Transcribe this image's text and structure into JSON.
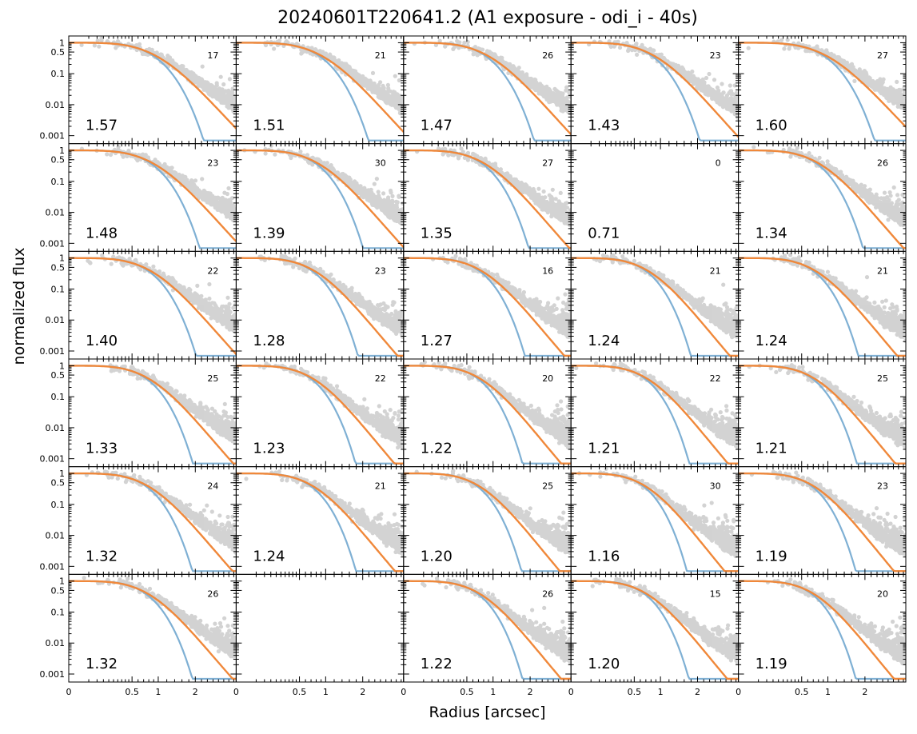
{
  "figure": {
    "title": "20240601T220641.2 (A1 exposure - odi_i - 40s)",
    "xlabel": "Radius [arcsec]",
    "ylabel": "normalized flux"
  },
  "chart_data": {
    "type": "scatter",
    "layout": {
      "rows": 6,
      "cols": 5
    },
    "x_axis": {
      "scale": "sqrt",
      "range": [
        0,
        3.5
      ],
      "ticks": [
        0,
        0.5,
        1,
        2
      ],
      "tick_labels": [
        "0",
        "0.5",
        "1",
        "2"
      ]
    },
    "y_axis": {
      "scale": "log",
      "range": [
        0.0007,
        1.3
      ],
      "ticks": [
        0.001,
        0.01,
        0.1,
        0.5,
        1
      ],
      "tick_labels": [
        "0.001",
        "0.01",
        "0.1",
        "0.5",
        "1"
      ]
    },
    "series_colors": {
      "data_points": "#808080",
      "model_blue": "#7fb0d4",
      "model_orange": "#f0883a"
    },
    "panels": [
      {
        "row": 0,
        "col": 0,
        "fwhm": "1.57",
        "count": "17",
        "has_data": true
      },
      {
        "row": 0,
        "col": 1,
        "fwhm": "1.51",
        "count": "21",
        "has_data": true
      },
      {
        "row": 0,
        "col": 2,
        "fwhm": "1.47",
        "count": "26",
        "has_data": true
      },
      {
        "row": 0,
        "col": 3,
        "fwhm": "1.43",
        "count": "23",
        "has_data": true
      },
      {
        "row": 0,
        "col": 4,
        "fwhm": "1.60",
        "count": "27",
        "has_data": true
      },
      {
        "row": 1,
        "col": 0,
        "fwhm": "1.48",
        "count": "23",
        "has_data": true
      },
      {
        "row": 1,
        "col": 1,
        "fwhm": "1.39",
        "count": "30",
        "has_data": true
      },
      {
        "row": 1,
        "col": 2,
        "fwhm": "1.35",
        "count": "27",
        "has_data": true
      },
      {
        "row": 1,
        "col": 3,
        "fwhm": "0.71",
        "count": "0",
        "has_data": false
      },
      {
        "row": 1,
        "col": 4,
        "fwhm": "1.34",
        "count": "26",
        "has_data": true
      },
      {
        "row": 2,
        "col": 0,
        "fwhm": "1.40",
        "count": "22",
        "has_data": true
      },
      {
        "row": 2,
        "col": 1,
        "fwhm": "1.28",
        "count": "23",
        "has_data": true
      },
      {
        "row": 2,
        "col": 2,
        "fwhm": "1.27",
        "count": "16",
        "has_data": true
      },
      {
        "row": 2,
        "col": 3,
        "fwhm": "1.24",
        "count": "21",
        "has_data": true
      },
      {
        "row": 2,
        "col": 4,
        "fwhm": "1.24",
        "count": "21",
        "has_data": true
      },
      {
        "row": 3,
        "col": 0,
        "fwhm": "1.33",
        "count": "25",
        "has_data": true
      },
      {
        "row": 3,
        "col": 1,
        "fwhm": "1.23",
        "count": "22",
        "has_data": true
      },
      {
        "row": 3,
        "col": 2,
        "fwhm": "1.22",
        "count": "20",
        "has_data": true
      },
      {
        "row": 3,
        "col": 3,
        "fwhm": "1.21",
        "count": "22",
        "has_data": true
      },
      {
        "row": 3,
        "col": 4,
        "fwhm": "1.21",
        "count": "25",
        "has_data": true
      },
      {
        "row": 4,
        "col": 0,
        "fwhm": "1.32",
        "count": "24",
        "has_data": true
      },
      {
        "row": 4,
        "col": 1,
        "fwhm": "1.24",
        "count": "21",
        "has_data": true
      },
      {
        "row": 4,
        "col": 2,
        "fwhm": "1.20",
        "count": "25",
        "has_data": true
      },
      {
        "row": 4,
        "col": 3,
        "fwhm": "1.16",
        "count": "30",
        "has_data": true
      },
      {
        "row": 4,
        "col": 4,
        "fwhm": "1.19",
        "count": "23",
        "has_data": true
      },
      {
        "row": 5,
        "col": 0,
        "fwhm": "1.32",
        "count": "26",
        "has_data": true
      },
      {
        "row": 5,
        "col": 1,
        "fwhm": "",
        "count": "",
        "has_data": false
      },
      {
        "row": 5,
        "col": 2,
        "fwhm": "1.22",
        "count": "26",
        "has_data": true
      },
      {
        "row": 5,
        "col": 3,
        "fwhm": "1.20",
        "count": "15",
        "has_data": true
      },
      {
        "row": 5,
        "col": 4,
        "fwhm": "1.19",
        "count": "20",
        "has_data": true
      }
    ]
  }
}
